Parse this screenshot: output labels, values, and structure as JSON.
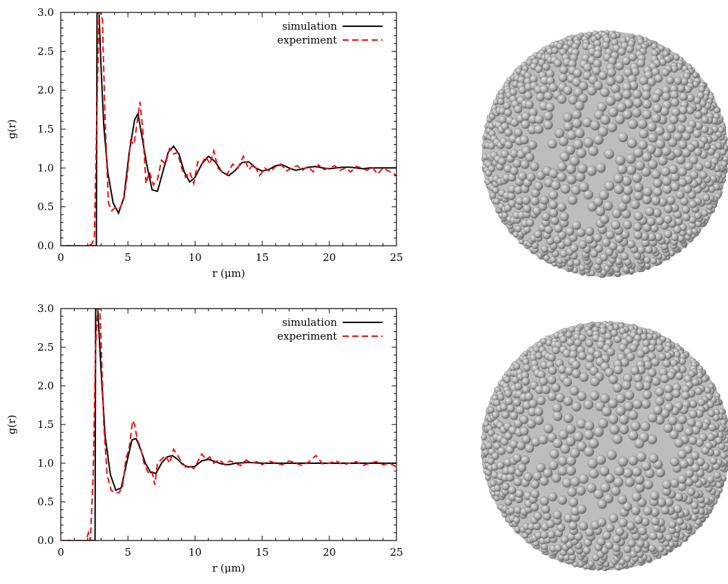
{
  "chart_data": [
    {
      "type": "line",
      "xlabel": "r (μm)",
      "ylabel": "g(r)",
      "xlim": [
        0,
        25
      ],
      "ylim": [
        0,
        3.0
      ],
      "xticks": [
        0,
        5,
        10,
        15,
        20,
        25
      ],
      "xtick_labels": [
        "0",
        "5",
        "10",
        "15",
        "20",
        "25"
      ],
      "yticks": [
        0,
        0.5,
        1.0,
        1.5,
        2.0,
        2.5,
        3.0
      ],
      "ytick_labels": [
        "0.0",
        "0.5",
        "1.0",
        "1.5",
        "2.0",
        "2.5",
        "3.0"
      ],
      "grid": false,
      "legend_position": "top-right",
      "series": [
        {
          "name": "simulation",
          "color": "#000000",
          "style": "solid",
          "x": [
            0,
            2.65,
            2.7,
            2.78,
            2.85,
            3.0,
            3.2,
            3.5,
            3.9,
            4.3,
            4.7,
            5.1,
            5.5,
            5.75,
            6.0,
            6.4,
            6.8,
            7.2,
            7.6,
            8.0,
            8.4,
            8.8,
            9.2,
            9.6,
            10.0,
            10.5,
            11.0,
            11.5,
            12.0,
            12.5,
            13.0,
            13.5,
            14.0,
            14.5,
            15.0,
            15.5,
            16.0,
            16.5,
            17.0,
            17.5,
            18.0,
            18.5,
            19.0,
            19.5,
            20.0,
            20.5,
            21.0,
            21.5,
            22.0,
            22.5,
            23.0,
            23.5,
            24.0,
            24.5,
            25.0
          ],
          "y": [
            0,
            0,
            3.0,
            3.0,
            3.0,
            2.3,
            1.55,
            0.95,
            0.55,
            0.42,
            0.62,
            1.2,
            1.62,
            1.7,
            1.45,
            1.05,
            0.72,
            0.7,
            0.95,
            1.2,
            1.28,
            1.18,
            0.95,
            0.82,
            0.88,
            1.05,
            1.15,
            1.08,
            0.95,
            0.9,
            0.97,
            1.07,
            1.08,
            1.0,
            0.96,
            0.98,
            1.03,
            1.04,
            1.0,
            0.97,
            0.99,
            1.01,
            1.02,
            1.0,
            0.99,
            1.0,
            1.01,
            1.01,
            1.0,
            0.99,
            1.0,
            1.0,
            1.0,
            1.0,
            1.0
          ]
        },
        {
          "name": "experiment",
          "color": "#ff0000",
          "style": "dashed",
          "x": [
            0,
            2.0,
            2.3,
            2.5,
            2.7,
            2.85,
            3.0,
            3.1,
            3.3,
            3.55,
            3.8,
            4.1,
            4.4,
            4.7,
            4.95,
            5.2,
            5.45,
            5.7,
            5.9,
            6.1,
            6.35,
            6.6,
            6.9,
            7.2,
            7.5,
            7.8,
            8.1,
            8.4,
            8.7,
            9.0,
            9.3,
            9.6,
            9.9,
            10.2,
            10.5,
            10.8,
            11.1,
            11.4,
            11.7,
            12.0,
            12.4,
            12.8,
            13.2,
            13.6,
            14.0,
            14.4,
            14.8,
            15.2,
            15.6,
            16.0,
            16.4,
            16.8,
            17.2,
            17.6,
            18.0,
            18.4,
            18.8,
            19.2,
            19.6,
            20.0,
            20.4,
            20.8,
            21.2,
            21.6,
            22.0,
            22.4,
            22.8,
            23.2,
            23.6,
            24.0,
            24.4,
            24.8,
            25.0
          ],
          "y": [
            0,
            0,
            0.02,
            0.1,
            1.8,
            3.0,
            3.0,
            2.9,
            1.6,
            0.55,
            0.45,
            0.5,
            0.48,
            0.6,
            0.9,
            1.35,
            1.3,
            1.6,
            1.85,
            1.5,
            0.8,
            0.95,
            0.78,
            0.85,
            1.1,
            1.05,
            1.25,
            1.18,
            1.2,
            1.0,
            0.88,
            0.95,
            0.8,
            1.08,
            1.05,
            1.15,
            1.05,
            1.22,
            1.0,
            0.95,
            0.92,
            1.05,
            1.0,
            1.15,
            0.98,
            1.05,
            0.9,
            1.0,
            0.95,
            1.02,
            1.05,
            0.96,
            1.0,
            1.03,
            0.97,
            1.02,
            0.95,
            1.04,
            0.98,
            1.0,
            1.03,
            0.97,
            1.0,
            0.95,
            1.02,
            1.0,
            0.97,
            1.01,
            0.92,
            1.0,
            0.96,
            0.93,
            0.9
          ]
        }
      ]
    },
    {
      "type": "line",
      "xlabel": "r (μm)",
      "ylabel": "g(r)",
      "xlim": [
        0,
        25
      ],
      "ylim": [
        0,
        3.0
      ],
      "xticks": [
        0,
        5,
        10,
        15,
        20,
        25
      ],
      "xtick_labels": [
        "0",
        "5",
        "10",
        "15",
        "20",
        "25"
      ],
      "yticks": [
        0,
        0.5,
        1.0,
        1.5,
        2.0,
        2.5,
        3.0
      ],
      "ytick_labels": [
        "0.0",
        "0.5",
        "1.0",
        "1.5",
        "2.0",
        "2.5",
        "3.0"
      ],
      "grid": false,
      "legend_position": "top-right",
      "series": [
        {
          "name": "simulation",
          "color": "#000000",
          "style": "solid",
          "x": [
            0,
            2.55,
            2.6,
            2.75,
            3.0,
            3.3,
            3.7,
            4.1,
            4.5,
            4.9,
            5.3,
            5.6,
            5.9,
            6.3,
            6.7,
            7.1,
            7.5,
            7.9,
            8.3,
            8.7,
            9.1,
            9.5,
            10.0,
            10.5,
            11.0,
            11.5,
            12.0,
            12.5,
            13.0,
            14.0,
            15.0,
            16.0,
            17.0,
            18.0,
            19.0,
            20.0,
            21.0,
            22.0,
            23.0,
            24.0,
            25.0
          ],
          "y": [
            0,
            0,
            3.0,
            3.0,
            2.2,
            1.35,
            0.85,
            0.65,
            0.68,
            1.0,
            1.3,
            1.32,
            1.2,
            1.0,
            0.88,
            0.87,
            1.0,
            1.08,
            1.1,
            1.05,
            0.98,
            0.95,
            0.96,
            1.03,
            1.05,
            1.02,
            0.99,
            0.98,
            1.0,
            1.01,
            1.0,
            1.0,
            1.0,
            1.0,
            1.0,
            1.0,
            1.0,
            1.0,
            1.0,
            1.0,
            1.0
          ]
        },
        {
          "name": "experiment",
          "color": "#ff0000",
          "style": "dashed",
          "x": [
            0,
            1.9,
            2.05,
            2.2,
            2.4,
            2.6,
            2.75,
            2.9,
            3.0,
            3.2,
            3.45,
            3.75,
            4.05,
            4.35,
            4.6,
            4.85,
            5.1,
            5.35,
            5.5,
            5.7,
            5.95,
            6.2,
            6.5,
            6.8,
            7.0,
            7.2,
            7.5,
            7.8,
            8.1,
            8.4,
            8.7,
            9.0,
            9.3,
            9.6,
            9.9,
            10.2,
            10.5,
            10.8,
            11.1,
            11.4,
            11.8,
            12.2,
            12.6,
            13.0,
            13.4,
            13.8,
            14.2,
            14.6,
            15.0,
            15.5,
            16.0,
            16.5,
            17.0,
            17.5,
            18.0,
            18.5,
            19.0,
            19.5,
            20.0,
            20.5,
            21.0,
            21.5,
            22.0,
            22.5,
            23.0,
            23.5,
            24.0,
            24.5,
            25.0
          ],
          "y": [
            0,
            0,
            0.1,
            0.0,
            0.8,
            2.5,
            3.0,
            3.0,
            2.6,
            1.5,
            0.85,
            0.65,
            0.62,
            0.62,
            0.7,
            1.05,
            1.2,
            1.55,
            1.5,
            1.3,
            1.2,
            1.0,
            0.88,
            0.9,
            0.72,
            1.0,
            1.05,
            1.1,
            1.0,
            1.18,
            1.1,
            1.02,
            0.95,
            0.97,
            0.93,
            1.02,
            1.12,
            1.05,
            1.08,
            1.0,
            1.05,
            0.98,
            1.03,
            1.0,
            0.97,
            1.04,
            1.0,
            1.02,
            0.98,
            1.03,
            1.0,
            0.98,
            1.03,
            1.0,
            0.97,
            1.02,
            1.1,
            0.99,
            1.0,
            1.03,
            0.98,
            1.0,
            1.02,
            0.97,
            1.0,
            1.02,
            0.98,
            1.0,
            0.95
          ]
        }
      ]
    }
  ]
}
